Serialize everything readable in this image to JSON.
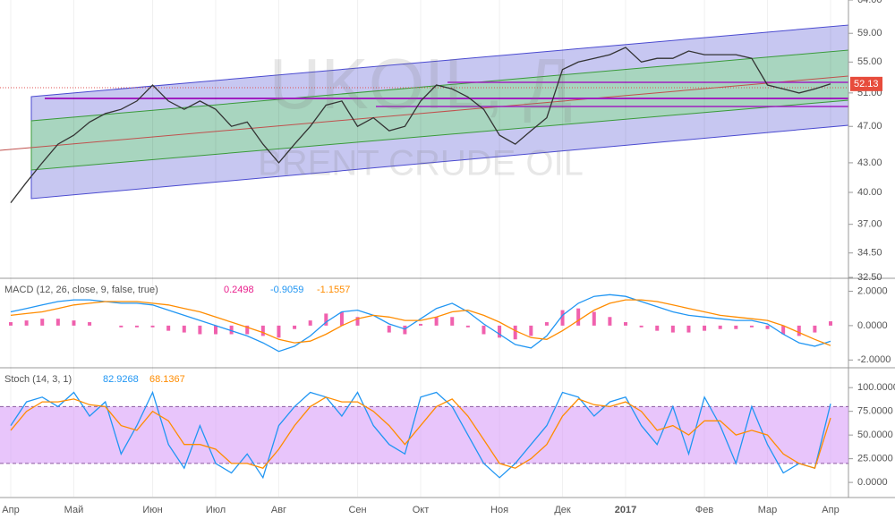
{
  "chart_data": [
    {
      "type": "line",
      "title": "UKOIL, Д",
      "subtitle": "BRENT CRUDE OIL",
      "log_scale": true,
      "grid": true,
      "categories": [
        "Апр",
        null,
        null,
        null,
        "Май",
        null,
        null,
        null,
        null,
        "Июн",
        null,
        null,
        null,
        "Июл",
        null,
        null,
        null,
        "Авг",
        null,
        null,
        null,
        null,
        "Сен",
        null,
        null,
        null,
        "Окт",
        null,
        null,
        null,
        null,
        "Ноя",
        null,
        null,
        null,
        "Дек",
        null,
        null,
        null,
        "2017",
        null,
        null,
        null,
        null,
        "Фев",
        null,
        null,
        null,
        "Мар",
        null,
        null,
        null,
        "Апр"
      ],
      "series": [
        {
          "name": "UKOIL",
          "color": "#333333",
          "values": [
            39,
            41,
            43,
            45,
            46,
            47.5,
            48.5,
            49,
            50,
            52,
            50,
            49,
            50,
            49,
            47,
            47.5,
            45,
            43,
            45,
            47,
            49.5,
            50,
            47,
            48,
            46.5,
            47,
            50,
            52,
            51.5,
            50.5,
            49,
            46,
            45,
            46.5,
            48,
            54,
            55,
            55.5,
            56,
            57,
            55,
            55.5,
            55.5,
            56.5,
            56,
            56,
            56,
            55.5,
            52,
            51.5,
            51,
            51.5,
            52.13
          ]
        }
      ],
      "price_tag": "52.13",
      "ylim": [
        32.5,
        64
      ],
      "yticks": [
        {
          "value": 64,
          "label": "64.00"
        },
        {
          "value": 59,
          "label": "59.00"
        },
        {
          "value": 55,
          "label": "55.00"
        },
        {
          "value": 51,
          "label": "51.00"
        },
        {
          "value": 47,
          "label": "47.00"
        },
        {
          "value": 43,
          "label": "43.00"
        },
        {
          "value": 40,
          "label": "40.00"
        },
        {
          "value": 37,
          "label": "37.00"
        },
        {
          "value": 34.5,
          "label": "34.50"
        },
        {
          "value": 32.5,
          "label": "32.50"
        }
      ]
    },
    {
      "type": "macd",
      "title": "MACD (12, 26, close, 9, false, true)",
      "legend_values": [
        "0.2498",
        "-0.9059",
        "-1.1557"
      ],
      "series": [
        {
          "name": "Histogram",
          "color": "#e91e8c",
          "values": [
            0.2,
            0.3,
            0.4,
            0.4,
            0.3,
            0.2,
            0,
            -0.1,
            -0.1,
            -0.1,
            -0.3,
            -0.4,
            -0.5,
            -0.5,
            -0.5,
            -0.5,
            -0.6,
            -0.7,
            -0.2,
            0.3,
            0.7,
            0.8,
            0.5,
            0,
            -0.4,
            -0.5,
            0.1,
            0.5,
            0.5,
            -0.1,
            -0.5,
            -0.7,
            -0.8,
            -0.6,
            0.2,
            0.9,
            1.0,
            0.8,
            0.5,
            0.2,
            -0.1,
            -0.3,
            -0.4,
            -0.4,
            -0.3,
            -0.2,
            -0.2,
            -0.1,
            -0.2,
            -0.5,
            -0.6,
            -0.4,
            0.25
          ]
        },
        {
          "name": "MACD",
          "color": "#2196f3",
          "values": [
            0.8,
            1.0,
            1.2,
            1.4,
            1.5,
            1.5,
            1.4,
            1.3,
            1.3,
            1.2,
            0.9,
            0.6,
            0.3,
            0.0,
            -0.3,
            -0.6,
            -1.0,
            -1.5,
            -1.2,
            -0.6,
            0.2,
            0.8,
            0.9,
            0.6,
            0.1,
            -0.2,
            0.4,
            1.0,
            1.3,
            0.8,
            0.1,
            -0.5,
            -1.1,
            -1.3,
            -0.6,
            0.6,
            1.3,
            1.7,
            1.8,
            1.7,
            1.4,
            1.1,
            0.8,
            0.6,
            0.5,
            0.4,
            0.3,
            0.3,
            0.1,
            -0.5,
            -1.0,
            -1.2,
            -0.91
          ]
        },
        {
          "name": "Signal",
          "color": "#ff8c00",
          "values": [
            0.6,
            0.7,
            0.8,
            1.0,
            1.2,
            1.3,
            1.4,
            1.4,
            1.4,
            1.3,
            1.2,
            1.0,
            0.8,
            0.5,
            0.2,
            -0.1,
            -0.4,
            -0.8,
            -1.0,
            -0.9,
            -0.5,
            0.0,
            0.4,
            0.6,
            0.5,
            0.3,
            0.3,
            0.5,
            0.8,
            0.9,
            0.6,
            0.2,
            -0.3,
            -0.7,
            -0.8,
            -0.3,
            0.3,
            0.9,
            1.3,
            1.5,
            1.5,
            1.4,
            1.2,
            1.0,
            0.8,
            0.6,
            0.5,
            0.4,
            0.3,
            0.0,
            -0.4,
            -0.8,
            -1.16
          ]
        }
      ],
      "ylim": [
        -2.4,
        2.7
      ],
      "yticks": [
        {
          "value": 2,
          "label": "2.0000"
        },
        {
          "value": 0,
          "label": "0.0000"
        },
        {
          "value": -2,
          "label": "-2.0000"
        }
      ]
    },
    {
      "type": "line",
      "title": "Stoch (14, 3, 1)",
      "legend_values": [
        "82.9268",
        "68.1367"
      ],
      "band": [
        20,
        80
      ],
      "band_color": "#d18cf7",
      "series": [
        {
          "name": "%K",
          "color": "#2196f3",
          "values": [
            60,
            85,
            90,
            80,
            95,
            70,
            85,
            30,
            60,
            95,
            40,
            15,
            60,
            20,
            10,
            30,
            5,
            60,
            80,
            95,
            90,
            70,
            95,
            60,
            40,
            30,
            90,
            95,
            80,
            50,
            20,
            5,
            20,
            40,
            60,
            95,
            90,
            70,
            85,
            90,
            60,
            40,
            80,
            30,
            90,
            60,
            20,
            80,
            40,
            10,
            20,
            15,
            83
          ]
        },
        {
          "name": "%D",
          "color": "#ff8c00",
          "values": [
            55,
            75,
            85,
            85,
            88,
            82,
            80,
            60,
            55,
            75,
            65,
            40,
            40,
            35,
            20,
            20,
            15,
            35,
            60,
            80,
            90,
            85,
            85,
            75,
            60,
            40,
            60,
            80,
            88,
            70,
            45,
            20,
            15,
            25,
            40,
            70,
            88,
            82,
            80,
            85,
            75,
            55,
            60,
            50,
            65,
            65,
            50,
            55,
            50,
            30,
            20,
            15,
            68
          ]
        }
      ],
      "ylim": [
        -15,
        120
      ],
      "yticks": [
        {
          "value": 100,
          "label": "100.0000"
        },
        {
          "value": 75,
          "label": "75.0000"
        },
        {
          "value": 50,
          "label": "50.0000"
        },
        {
          "value": 25,
          "label": "25.0000"
        },
        {
          "value": 0,
          "label": "0.0000"
        }
      ]
    }
  ]
}
